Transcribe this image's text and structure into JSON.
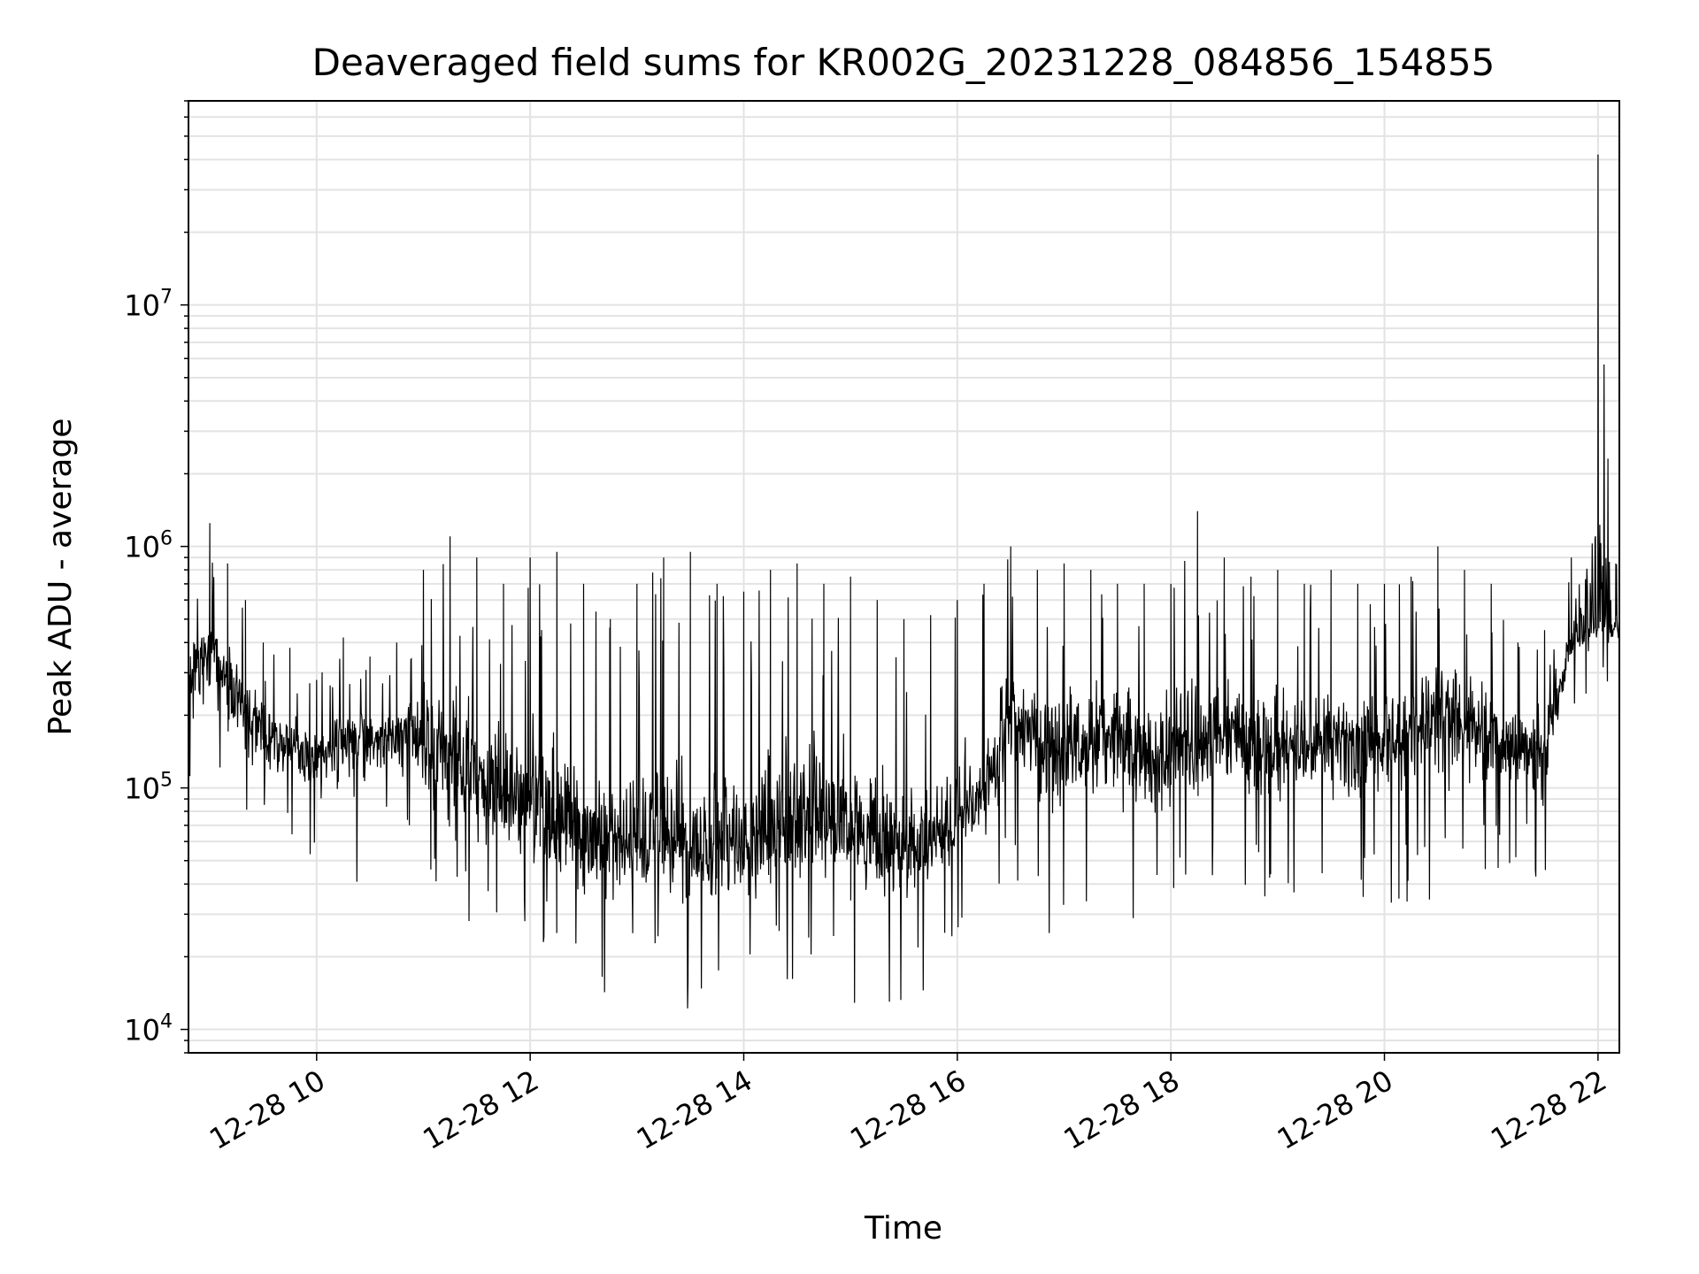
{
  "chart_data": {
    "type": "line",
    "title": "Deaveraged field sums for KR002G_20231228_084856_154855",
    "xlabel": "Time",
    "ylabel": "Peak ADU - average",
    "yscale": "log",
    "ylim": [
      8000,
      70000000
    ],
    "xlim": [
      "12-28 08:48",
      "12-28 22:12"
    ],
    "grid": true,
    "legend": "none",
    "line_color": "#000000",
    "x_ticks": [
      "12-28 10",
      "12-28 12",
      "12-28 14",
      "12-28 16",
      "12-28 18",
      "12-28 20",
      "12-28 22"
    ],
    "y_ticks": [
      {
        "base": "10",
        "exp": "4",
        "value": 10000
      },
      {
        "base": "10",
        "exp": "5",
        "value": 100000
      },
      {
        "base": "10",
        "exp": "6",
        "value": 1000000
      },
      {
        "base": "10",
        "exp": "7",
        "value": 10000000
      }
    ],
    "series": [
      {
        "x": [
          "12-28 08:48",
          "12-28 09:00",
          "12-28 09:10",
          "12-28 09:20",
          "12-28 09:30",
          "12-28 09:45",
          "12-28 10:00",
          "12-28 10:15",
          "12-28 10:30",
          "12-28 10:45",
          "12-28 11:00",
          "12-28 11:15",
          "12-28 11:30",
          "12-28 11:45",
          "12-28 12:00",
          "12-28 12:15",
          "12-28 12:30",
          "12-28 12:45",
          "12-28 13:00",
          "12-28 13:15",
          "12-28 13:30",
          "12-28 13:45",
          "12-28 14:00",
          "12-28 14:15",
          "12-28 14:30",
          "12-28 14:45",
          "12-28 15:00",
          "12-28 15:15",
          "12-28 15:30",
          "12-28 15:45",
          "12-28 16:00",
          "12-28 16:15",
          "12-28 16:30",
          "12-28 16:45",
          "12-28 17:00",
          "12-28 17:15",
          "12-28 17:30",
          "12-28 17:45",
          "12-28 18:00",
          "12-28 18:15",
          "12-28 18:30",
          "12-28 18:45",
          "12-28 19:00",
          "12-28 19:15",
          "12-28 19:30",
          "12-28 19:45",
          "12-28 20:00",
          "12-28 20:15",
          "12-28 20:30",
          "12-28 20:45",
          "12-28 21:00",
          "12-28 21:15",
          "12-28 21:30",
          "12-28 21:45",
          "12-28 22:00",
          "12-28 22:10"
        ],
        "y": [
          250000,
          400000,
          300000,
          220000,
          170000,
          150000,
          140000,
          150000,
          170000,
          160000,
          160000,
          140000,
          110000,
          90000,
          80000,
          70000,
          60000,
          55000,
          58000,
          62000,
          60000,
          55000,
          58000,
          65000,
          75000,
          70000,
          65000,
          60000,
          55000,
          58000,
          75000,
          95000,
          200000,
          150000,
          140000,
          160000,
          170000,
          140000,
          130000,
          150000,
          160000,
          160000,
          150000,
          150000,
          160000,
          160000,
          150000,
          170000,
          200000,
          180000,
          160000,
          150000,
          140000,
          400000,
          500000,
          480000
        ],
        "spike_max": [
          900000,
          1250000,
          850000,
          600000,
          400000,
          380000,
          280000,
          420000,
          350000,
          400000,
          800000,
          1100000,
          900000,
          700000,
          900000,
          950000,
          700000,
          500000,
          700000,
          900000,
          950000,
          700000,
          650000,
          800000,
          850000,
          700000,
          750000,
          600000,
          500000,
          520000,
          600000,
          700000,
          1000000,
          800000,
          850000,
          800000,
          700000,
          700000,
          700000,
          1400000,
          900000,
          750000,
          800000,
          700000,
          800000,
          700000,
          700000,
          750000,
          1000000,
          800000,
          700000,
          400000,
          450000,
          900000,
          42000000,
          850000
        ],
        "spike_min": [
          90000,
          60000,
          70000,
          45000,
          60000,
          60000,
          42000,
          30000,
          55000,
          50000,
          35000,
          18000,
          25000,
          18000,
          20000,
          17000,
          15000,
          14000,
          14000,
          14000,
          12000,
          13000,
          14000,
          13000,
          16000,
          14000,
          12000,
          13000,
          13000,
          14000,
          25000,
          30000,
          45000,
          20000,
          30000,
          25000,
          23000,
          22000,
          30000,
          35000,
          34000,
          35000,
          30000,
          33000,
          36000,
          25000,
          33000,
          33000,
          35000,
          40000,
          45000,
          40000,
          40000,
          220000,
          250000,
          260000
        ]
      }
    ]
  }
}
